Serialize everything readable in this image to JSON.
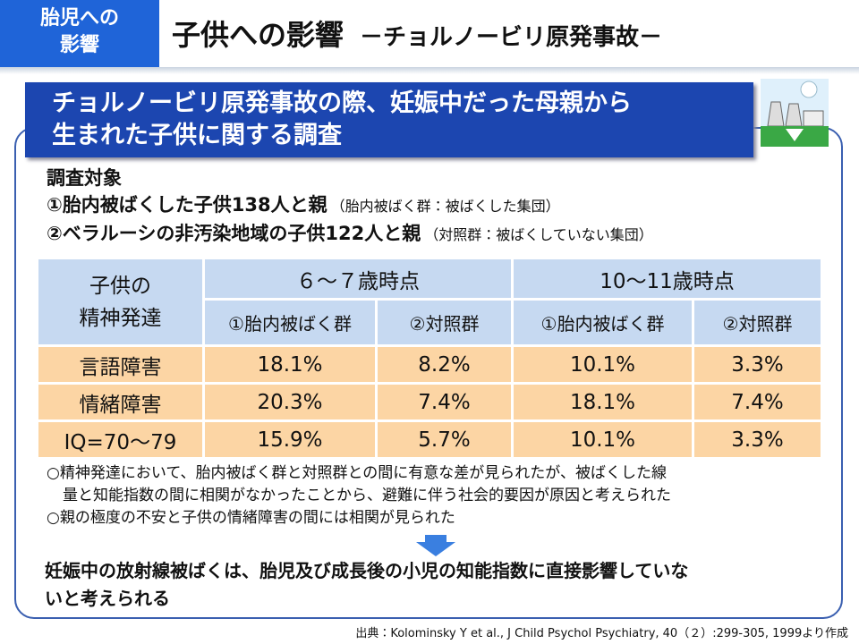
{
  "header": {
    "tag": [
      "胎児への",
      "影響"
    ],
    "title": "子供への影響",
    "subtitle": "－チョルノービリ原発事故－"
  },
  "banner": [
    "チョルノービリ原発事故の際、妊娠中だった母親から",
    "生まれた子供に関する調査"
  ],
  "subjects": {
    "heading": "調査対象",
    "items": [
      {
        "main": "①胎内被ばくした子供138人と親",
        "note": "（胎内被ばく群：被ばくした集団）"
      },
      {
        "main": "②ベラルーシの非汚染地域の子供122人と親",
        "note": "（対照群：被ばくしていない集団）"
      }
    ]
  },
  "table": {
    "corner": [
      "子供の",
      "精神発達"
    ],
    "groups": [
      "６～７歳時点",
      "10～11歳時点"
    ],
    "columns": [
      "①胎内被ばく群",
      "②対照群",
      "①胎内被ばく群",
      "②対照群"
    ],
    "rows": [
      {
        "label": "言語障害",
        "cells": [
          "18.1%",
          "8.2%",
          "10.1%",
          "3.3%"
        ]
      },
      {
        "label": "情緒障害",
        "cells": [
          "20.3%",
          "7.4%",
          "18.1%",
          "7.4%"
        ]
      },
      {
        "label": "IQ=70～79",
        "cells": [
          "15.9%",
          "5.7%",
          "10.1%",
          "3.3%"
        ]
      }
    ]
  },
  "notes": [
    [
      "○精神発達において、胎内被ばく群と対照群との間に有意な差が見られたが、被ばくした線",
      "量と知能指数の間に相関がなかったことから、避難に伴う社会的要因が原因と考えられた"
    ],
    [
      "○親の極度の不安と子供の情緒障害の間には相関が見られた"
    ]
  ],
  "conclusion": [
    "妊娠中の放射線被ばくは、胎児及び成長後の小児の知能指数に直接影響していな",
    "いと考えられる"
  ],
  "source": "出典：Kolominsky Y et al., J Child Psychol Psychiatry, 40（２）:299-305, 1999より作成"
}
